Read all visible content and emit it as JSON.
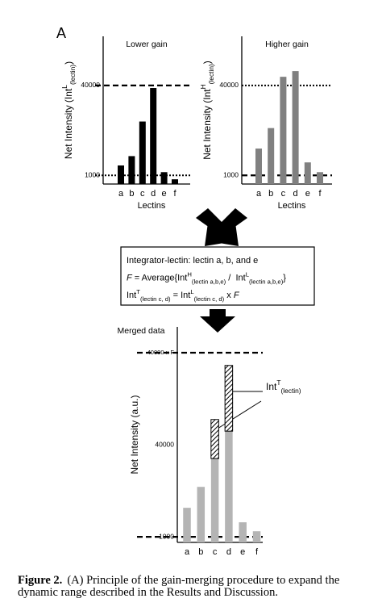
{
  "figure_label": "A",
  "chart_data": [
    {
      "type": "bar",
      "title": "Lower gain",
      "ylabel": [
        {
          "t": "Net Intensity (Int"
        },
        {
          "t": "L",
          "s": "sup"
        },
        {
          "t": "(lectin)",
          "s": "sub"
        },
        {
          "t": ")"
        }
      ],
      "xlabel": "Lectins",
      "categories": [
        "a",
        "b",
        "c",
        "d",
        "e",
        "f"
      ],
      "series": [
        {
          "color": "#000000",
          "values": [
            1500,
            2200,
            9100,
            36000,
            1140,
            850
          ]
        }
      ],
      "log": true,
      "ylim": [
        700,
        300000
      ],
      "yticks": [
        1000,
        40000
      ],
      "ref_lines": [
        {
          "y": 40000,
          "style": "dashed"
        },
        {
          "y": 1000,
          "style": "dotted"
        }
      ]
    },
    {
      "type": "bar",
      "title": "Higher gain",
      "ylabel": [
        {
          "t": "Net Intensity (Int"
        },
        {
          "t": "H",
          "s": "sup"
        },
        {
          "t": "(lectin)",
          "s": "sub"
        },
        {
          "t": ")"
        }
      ],
      "xlabel": "Lectins",
      "categories": [
        "a",
        "b",
        "c",
        "d",
        "e",
        "f"
      ],
      "series": [
        {
          "color": "#808080",
          "values": [
            3000,
            6950,
            57000,
            72000,
            1700,
            1140
          ]
        }
      ],
      "log": true,
      "ylim": [
        700,
        300000
      ],
      "yticks": [
        1000,
        40000
      ],
      "ref_lines": [
        {
          "y": 40000,
          "style": "dotted"
        },
        {
          "y": 1000,
          "style": "dashed"
        }
      ]
    },
    {
      "type": "stacked_bar",
      "title": "Merged data",
      "ylabel": [
        {
          "t": "Net Intensity (a.u.)"
        }
      ],
      "categories": [
        "a",
        "b",
        "c",
        "d",
        "e",
        "f"
      ],
      "series": [
        {
          "color": "#b4b4b4",
          "values": [
            3200,
            7400,
            23000,
            69000,
            1790,
            1250
          ]
        },
        {
          "color": "#000000",
          "pattern": "hatch",
          "values": [
            null,
            null,
            87000,
            891000,
            null,
            null
          ]
        }
      ],
      "log": true,
      "ylim": [
        800,
        4500000
      ],
      "yticks": [
        1000,
        40000,
        {
          "value": 1600000,
          "label": "40000 x F"
        }
      ],
      "ref_lines": [
        {
          "y": 1600000,
          "style": "dashed"
        },
        {
          "y": 1000,
          "style": "dashed"
        }
      ],
      "annotation": [
        {
          "t": "Int"
        },
        {
          "t": "T",
          "s": "sup"
        },
        {
          "t": "(lectin)",
          "s": "sub"
        }
      ]
    }
  ],
  "box": {
    "lines": [
      [
        {
          "t": "Integrator-lectin: lectin a, b, and e"
        }
      ],
      [
        {
          "t": "F",
          "s": "i"
        },
        {
          "t": " = Average{Int"
        },
        {
          "t": "H",
          "s": "sup"
        },
        {
          "t": "(lectin a,b,e)",
          "s": "sub"
        },
        {
          "t": " /  Int"
        },
        {
          "t": "L",
          "s": "sup"
        },
        {
          "t": "(lectin a,b,e)",
          "s": "sub"
        },
        {
          "t": "}"
        }
      ],
      [
        {
          "t": "Int"
        },
        {
          "t": "T",
          "s": "sup"
        },
        {
          "t": "(lectin c, d)",
          "s": "sub"
        },
        {
          "t": " = Int"
        },
        {
          "t": "L",
          "s": "sup"
        },
        {
          "t": "(lectin c, d)",
          "s": "sub"
        },
        {
          "t": " x "
        },
        {
          "t": "F",
          "s": "i"
        }
      ]
    ]
  },
  "caption": {
    "label": "Figure 2.",
    "text": "(A) Principle of the gain-merging procedure to expand the dynamic range described in the Results and Discussion."
  }
}
